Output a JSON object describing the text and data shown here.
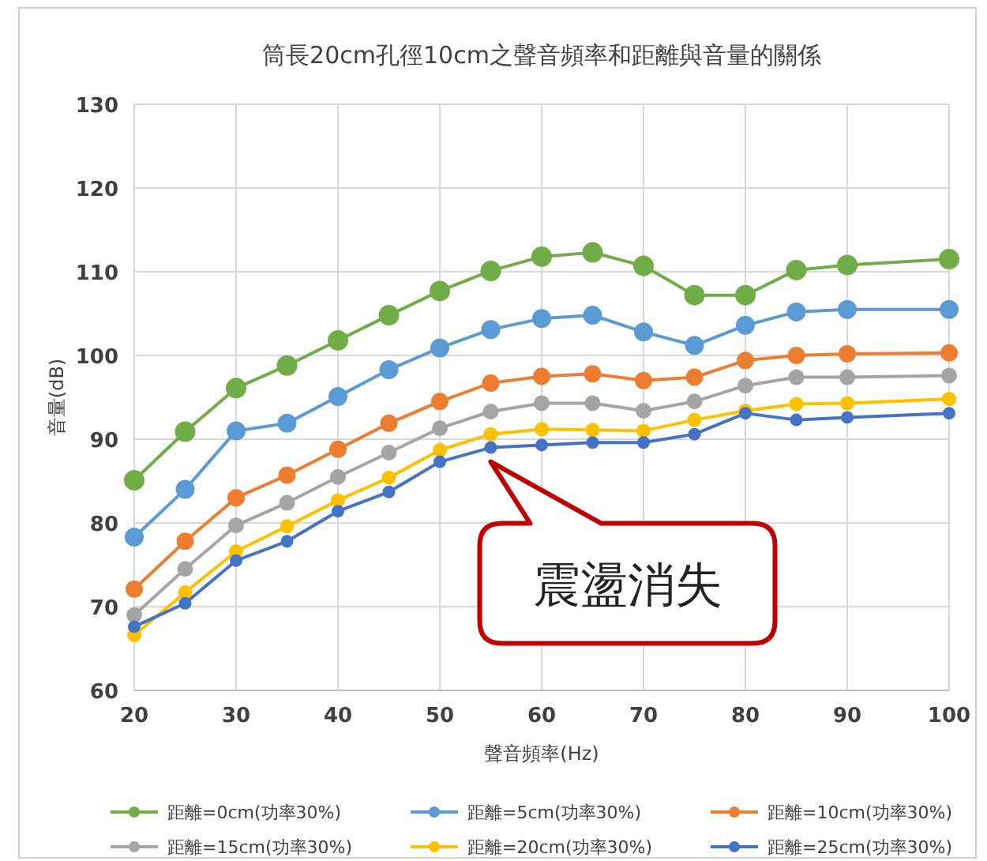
{
  "chart_data": {
    "type": "line",
    "title": "筒長20cm孔徑10cm之聲音頻率和距離與音量的關係",
    "xlabel": "聲音頻率(Hz)",
    "ylabel": "音量(dB)",
    "x": [
      20,
      25,
      30,
      35,
      40,
      45,
      50,
      55,
      60,
      65,
      70,
      75,
      80,
      85,
      90,
      100
    ],
    "series": [
      {
        "name": "距離=0cm(功率30%)",
        "color": "#70ad47",
        "values": [
          85.1,
          90.9,
          96.1,
          98.8,
          101.8,
          104.8,
          107.7,
          110.1,
          111.8,
          112.3,
          110.7,
          107.2,
          107.2,
          110.2,
          110.8,
          111.5
        ]
      },
      {
        "name": "距離=5cm(功率30%)",
        "color": "#5b9bd5",
        "values": [
          78.3,
          84.0,
          91.0,
          91.9,
          95.1,
          98.3,
          100.9,
          103.1,
          104.4,
          104.8,
          102.8,
          101.2,
          103.6,
          105.2,
          105.5,
          105.5
        ]
      },
      {
        "name": "距離=10cm(功率30%)",
        "color": "#ed7d31",
        "values": [
          72.1,
          77.8,
          83.0,
          85.7,
          88.8,
          91.9,
          94.5,
          96.7,
          97.5,
          97.8,
          97.0,
          97.4,
          99.4,
          100.0,
          100.2,
          100.3
        ]
      },
      {
        "name": "距離=15cm(功率30%)",
        "color": "#a5a5a5",
        "values": [
          69.0,
          74.5,
          79.7,
          82.4,
          85.5,
          88.4,
          91.3,
          93.3,
          94.3,
          94.3,
          93.4,
          94.5,
          96.4,
          97.4,
          97.4,
          97.6
        ]
      },
      {
        "name": "距離=20cm(功率30%)",
        "color": "#ffc000",
        "values": [
          66.6,
          71.7,
          76.6,
          79.6,
          82.7,
          85.4,
          88.7,
          90.6,
          91.2,
          91.1,
          91.0,
          92.3,
          93.4,
          94.2,
          94.3,
          94.8
        ]
      },
      {
        "name": "距離=25cm(功率30%)",
        "color": "#4472c4",
        "values": [
          67.6,
          70.4,
          75.5,
          77.8,
          81.4,
          83.7,
          87.3,
          89.0,
          89.3,
          89.6,
          89.6,
          90.6,
          93.1,
          92.3,
          92.6,
          93.1
        ]
      }
    ],
    "xlim": [
      20,
      100
    ],
    "xticks": [
      20,
      30,
      40,
      50,
      60,
      70,
      80,
      90,
      100
    ],
    "ylim": [
      60,
      130
    ],
    "yticks": [
      60,
      70,
      80,
      90,
      100,
      110,
      120,
      130
    ],
    "grid": true,
    "legend": "bottom",
    "marker": "circle",
    "line_style": "solid",
    "annotations": [
      {
        "text": "震盪消失",
        "x": 55,
        "y": 89
      }
    ]
  }
}
